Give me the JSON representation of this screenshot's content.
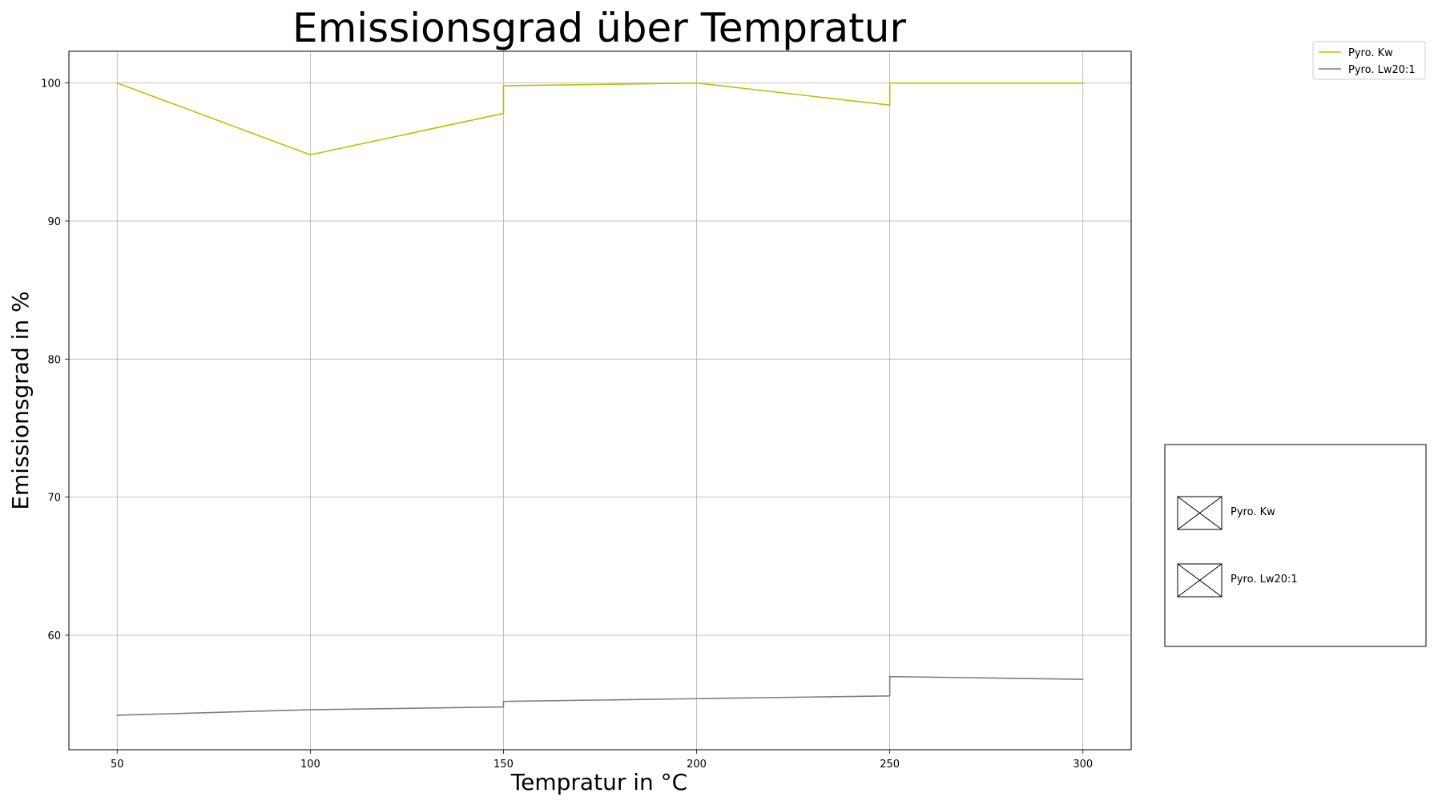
{
  "chart_data": {
    "type": "line",
    "title": "Emissionsgrad über Tempratur",
    "xlabel": "Tempratur in °C",
    "ylabel": "Emissionsgrad in %",
    "xlim": [
      37.5,
      312.5
    ],
    "ylim": [
      51.7,
      102.3
    ],
    "xticks": [
      50,
      100,
      150,
      200,
      250,
      300
    ],
    "yticks": [
      60,
      70,
      80,
      90,
      100
    ],
    "grid": true,
    "legend_position": "upper-right-outside",
    "series": [
      {
        "name": "Pyro. Kw",
        "color": "#bfbf00",
        "points": [
          [
            50,
            100
          ],
          [
            100,
            94.8
          ],
          [
            150,
            97.8
          ],
          [
            150,
            99.8
          ],
          [
            200,
            100
          ],
          [
            250,
            98.4
          ],
          [
            250,
            100
          ],
          [
            300,
            100
          ]
        ]
      },
      {
        "name": "Pyro. Lw20:1",
        "color": "#7f7f7f",
        "points": [
          [
            50,
            54.2
          ],
          [
            100,
            54.6
          ],
          [
            150,
            54.8
          ],
          [
            150,
            55.2
          ],
          [
            200,
            55.4
          ],
          [
            250,
            55.6
          ],
          [
            250,
            57.0
          ],
          [
            300,
            56.8
          ]
        ]
      }
    ],
    "secondary_legend": {
      "entries": [
        "Pyro. Kw",
        "Pyro. Lw20:1"
      ]
    }
  }
}
